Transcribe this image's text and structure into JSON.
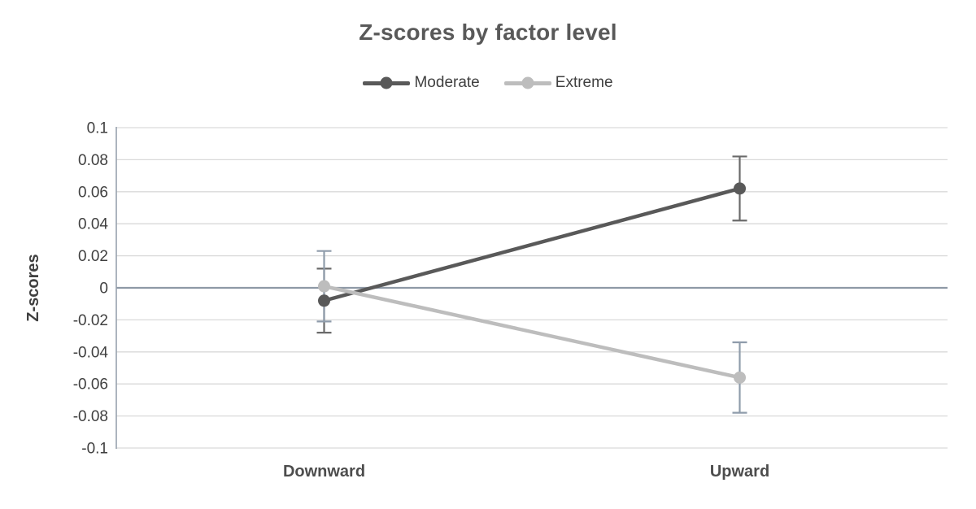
{
  "chart_data": {
    "type": "line",
    "title": "Z-scores by factor level",
    "categories": [
      "Downward",
      "Upward"
    ],
    "series": [
      {
        "name": "Moderate",
        "values": [
          -0.008,
          0.062
        ],
        "error": 0.02,
        "color": "#595959",
        "error_color": "#6a6a6a"
      },
      {
        "name": "Extreme",
        "values": [
          0.001,
          -0.056
        ],
        "error": 0.022,
        "color": "#bdbdbd",
        "error_color": "#8f9cab"
      }
    ],
    "xlabel": "",
    "ylabel": "Z-scores",
    "ylim": [
      -0.1,
      0.1
    ],
    "ytick_step": 0.02,
    "ytick_labels": [
      "0.1",
      "0.08",
      "0.06",
      "0.04",
      "0.02",
      "0",
      "-0.02",
      "-0.04",
      "-0.06",
      "-0.08",
      "-0.1"
    ],
    "grid": true,
    "legend_position": "top",
    "colors": {
      "gridline": "#d9d9d9",
      "zero_line": "#8e99a6",
      "axis_line": "#98a2ae",
      "tick_text": "#404040",
      "title_text": "#595959",
      "category_text": "#4d4d4d"
    }
  }
}
